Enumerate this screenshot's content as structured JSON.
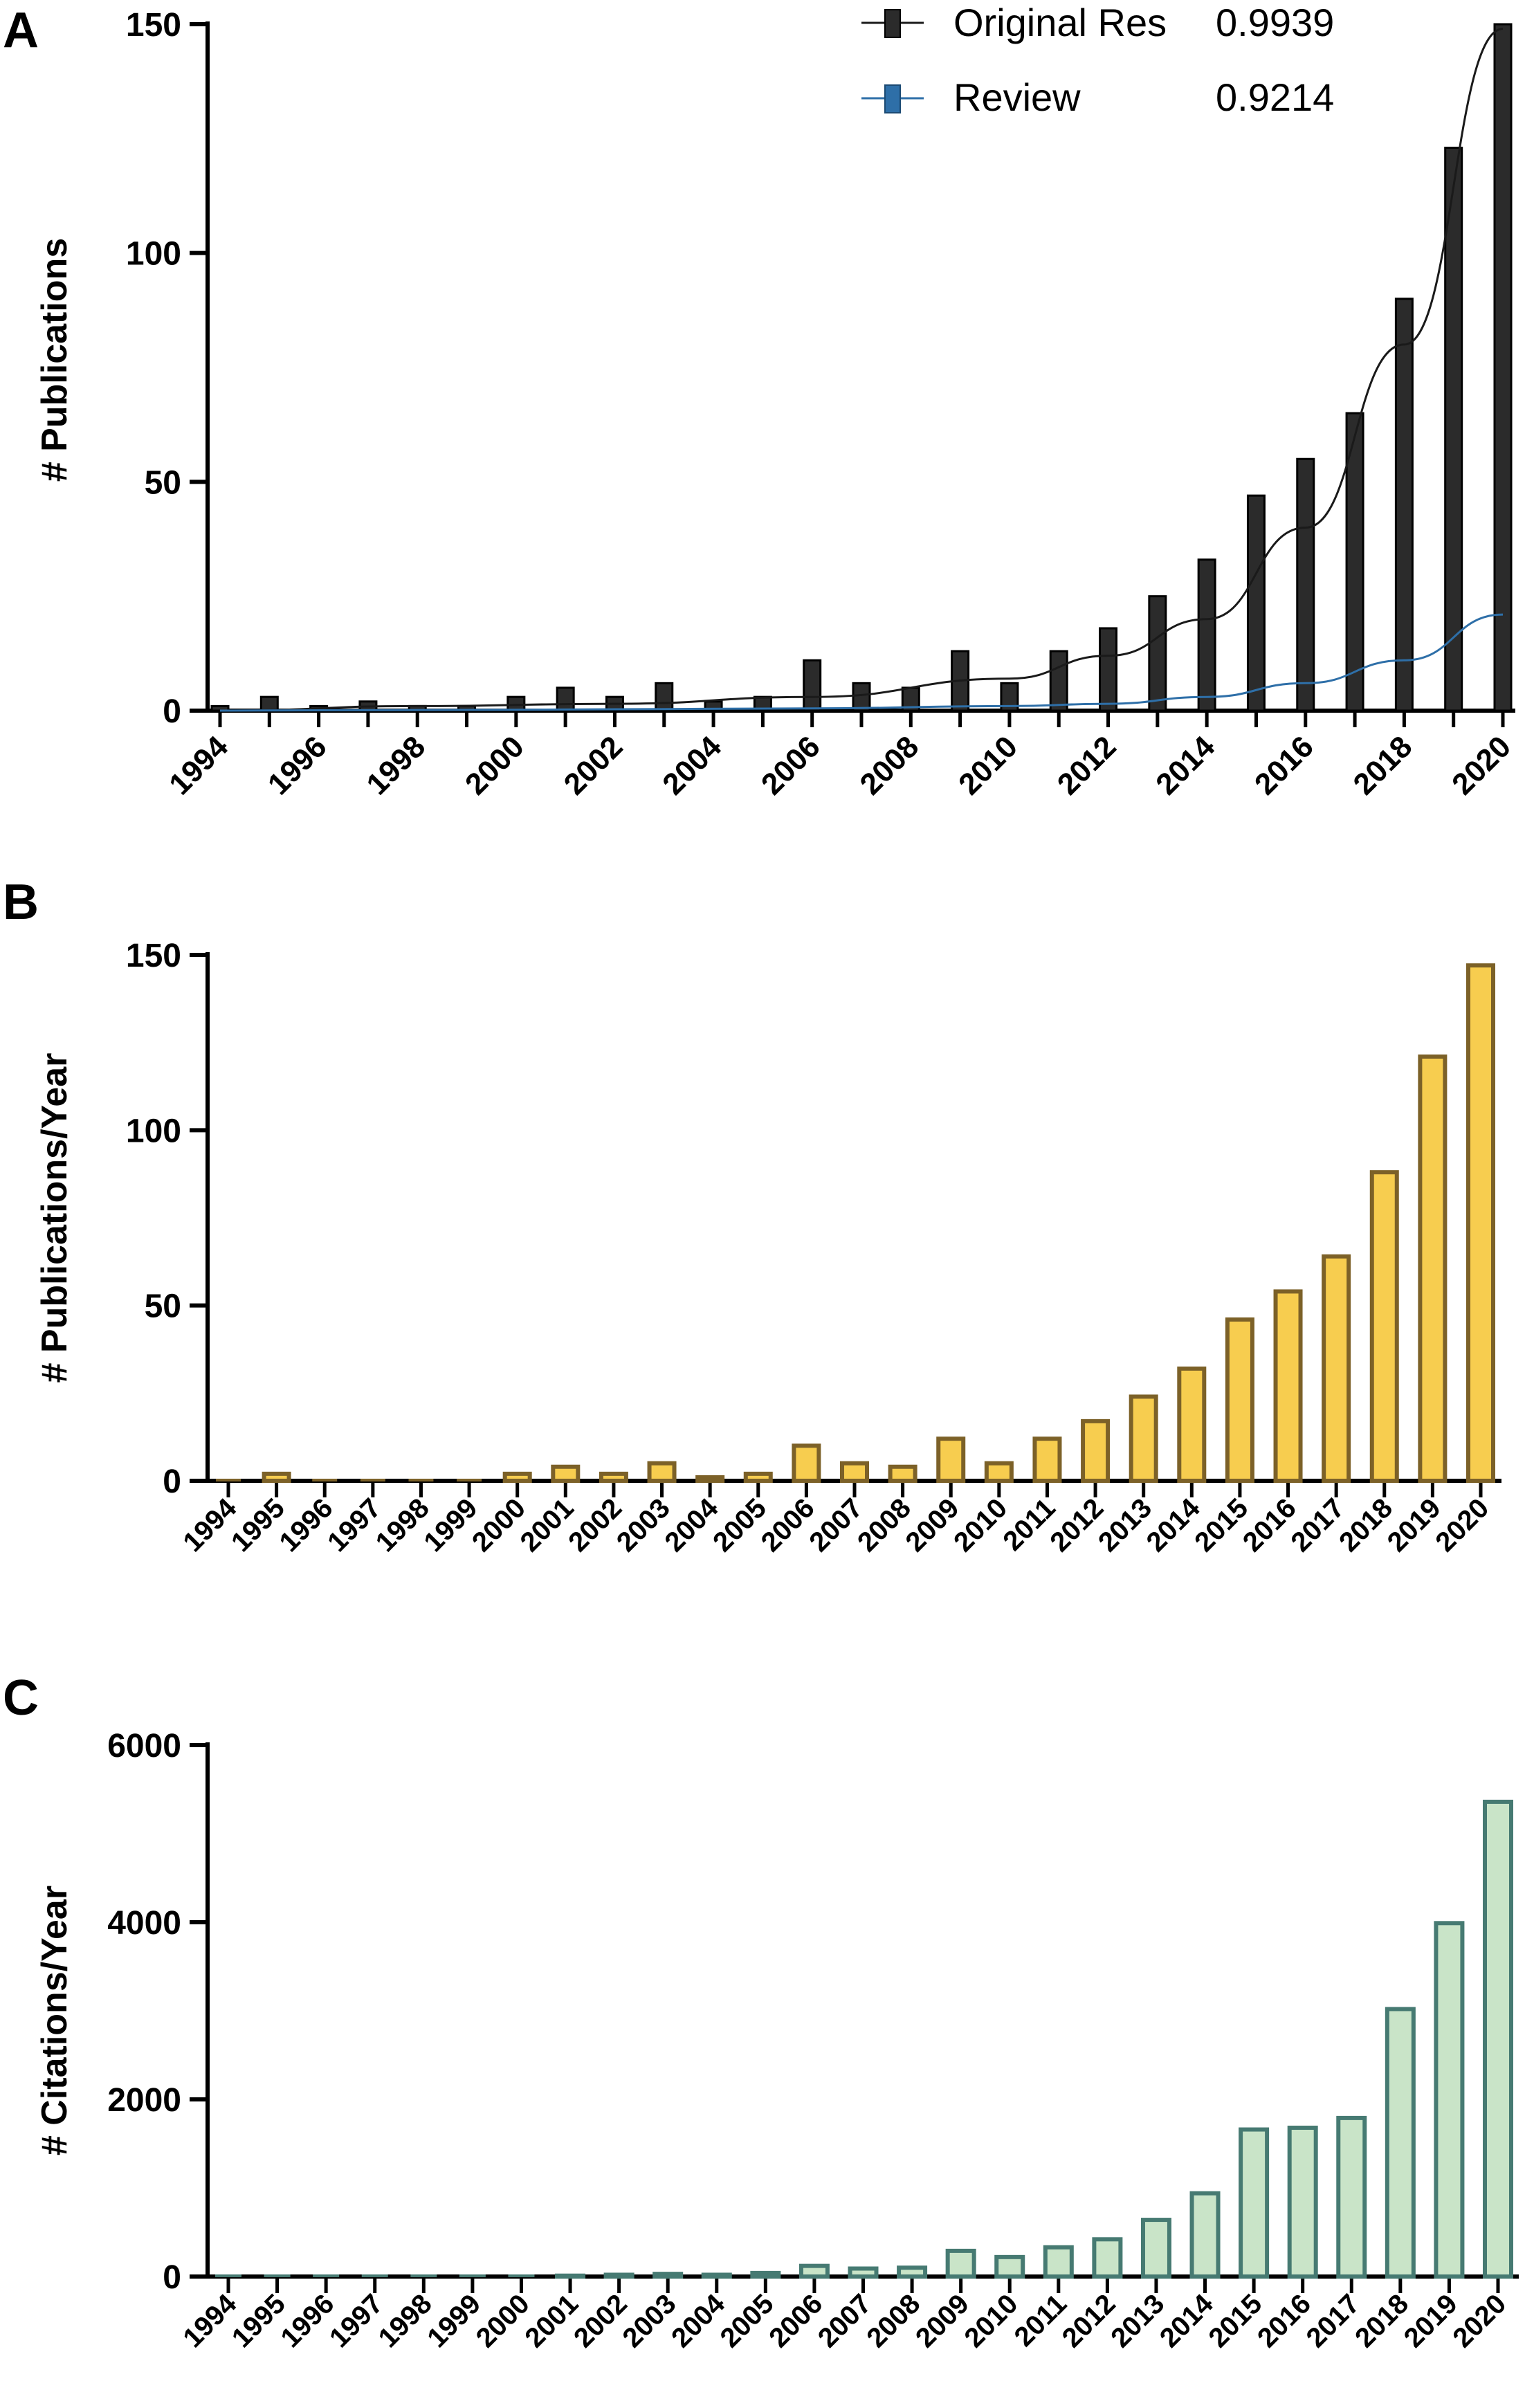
{
  "panels": {
    "a": {
      "letter": "A",
      "ylabel": "# Publications",
      "legend": [
        {
          "name": "Original Res",
          "r2": "0.9939"
        },
        {
          "name": "Review",
          "r2": "0.9214"
        }
      ]
    },
    "b": {
      "letter": "B",
      "ylabel": "# Publications/Year"
    },
    "c": {
      "letter": "C",
      "ylabel": "# Citations/Year"
    }
  },
  "colors": {
    "bar_a": "#2b2b2b",
    "bar_b_fill": "#f7cd4f",
    "bar_b_stroke": "#7c6128",
    "bar_c_fill": "#c9e4c8",
    "bar_c_stroke": "#467a72",
    "trend_original": "#1a1a1a",
    "trend_review": "#2e6fa8"
  },
  "chart_data": [
    {
      "type": "bar",
      "panel": "A",
      "title": "",
      "xlabel": "",
      "ylabel": "# Publications",
      "ylim": [
        0,
        150
      ],
      "yticks": [
        0,
        50,
        100,
        150
      ],
      "categories": [
        "1994",
        "1995",
        "1996",
        "1997",
        "1998",
        "1999",
        "2000",
        "2001",
        "2002",
        "2003",
        "2004",
        "2005",
        "2006",
        "2007",
        "2008",
        "2009",
        "2010",
        "2011",
        "2012",
        "2013",
        "2014",
        "2015",
        "2016",
        "2017",
        "2018",
        "2019",
        "2020"
      ],
      "xtick_labels": [
        "1994",
        "1996",
        "1998",
        "2000",
        "2002",
        "2004",
        "2006",
        "2008",
        "2010",
        "2012",
        "2014",
        "2016",
        "2018",
        "2020"
      ],
      "values": [
        1,
        3,
        1,
        2,
        1,
        1,
        3,
        5,
        3,
        6,
        2,
        3,
        11,
        6,
        5,
        13,
        6,
        13,
        18,
        25,
        33,
        47,
        55,
        65,
        90,
        123,
        150
      ],
      "series": [
        {
          "name": "Original Res",
          "r2": 0.9939,
          "kind": "exponential fit",
          "x": [
            1994,
            1998,
            2002,
            2006,
            2010,
            2012,
            2014,
            2016,
            2018,
            2020
          ],
          "y": [
            0,
            1,
            1.5,
            3,
            7,
            12,
            20,
            40,
            80,
            149
          ]
        },
        {
          "name": "Review",
          "r2": 0.9214,
          "kind": "exponential fit",
          "x": [
            1994,
            2000,
            2006,
            2010,
            2012,
            2014,
            2016,
            2018,
            2020
          ],
          "y": [
            0,
            0.2,
            0.5,
            1,
            1.5,
            3,
            6,
            11,
            21
          ]
        }
      ],
      "legend": "top-right"
    },
    {
      "type": "bar",
      "panel": "B",
      "title": "",
      "xlabel": "",
      "ylabel": "# Publications/Year",
      "ylim": [
        0,
        150
      ],
      "yticks": [
        0,
        50,
        100,
        150
      ],
      "categories": [
        "1994",
        "1995",
        "1996",
        "1997",
        "1998",
        "1999",
        "2000",
        "2001",
        "2002",
        "2003",
        "2004",
        "2005",
        "2006",
        "2007",
        "2008",
        "2009",
        "2010",
        "2011",
        "2012",
        "2013",
        "2014",
        "2015",
        "2016",
        "2017",
        "2018",
        "2019",
        "2020"
      ],
      "values": [
        0,
        2,
        0,
        0,
        0,
        0,
        2,
        4,
        2,
        5,
        1,
        2,
        10,
        5,
        4,
        12,
        5,
        12,
        17,
        24,
        32,
        46,
        54,
        64,
        88,
        121,
        147
      ]
    },
    {
      "type": "bar",
      "panel": "C",
      "title": "",
      "xlabel": "",
      "ylabel": "# Citations/Year",
      "ylim": [
        0,
        6000
      ],
      "yticks": [
        0,
        2000,
        4000,
        6000
      ],
      "categories": [
        "1994",
        "1995",
        "1996",
        "1997",
        "1998",
        "1999",
        "2000",
        "2001",
        "2002",
        "2003",
        "2004",
        "2005",
        "2006",
        "2007",
        "2008",
        "2009",
        "2010",
        "2011",
        "2012",
        "2013",
        "2014",
        "2015",
        "2016",
        "2017",
        "2018",
        "2019",
        "2020"
      ],
      "values": [
        0,
        0,
        0,
        0,
        0,
        0,
        0,
        10,
        20,
        30,
        20,
        40,
        120,
        90,
        100,
        290,
        220,
        330,
        420,
        640,
        940,
        1660,
        1680,
        1790,
        3020,
        3990,
        5360
      ]
    }
  ]
}
